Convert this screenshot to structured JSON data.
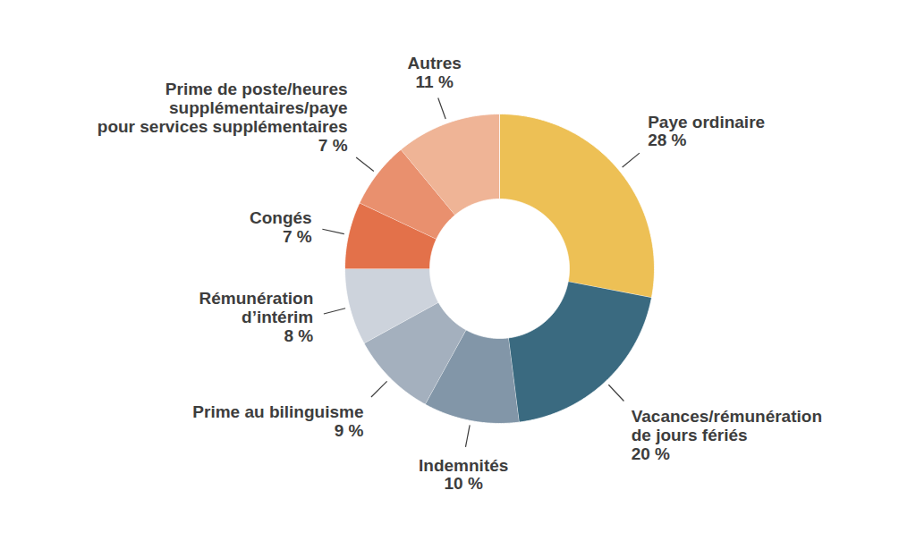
{
  "chart_data": {
    "type": "donut",
    "categories": [
      "Paye ordinaire",
      "Vacances/rémunération\nde jours fériés",
      "Indemnités",
      "Prime au bilinguisme",
      "Rémunération\nd’intérim",
      "Congés",
      "Prime de poste/heures\nsupplémentaires/paye\npour services supplémentaires",
      "Autres"
    ],
    "values": [
      28,
      20,
      10,
      9,
      8,
      7,
      7,
      11
    ],
    "value_labels": [
      "28 %",
      "20 %",
      "10 %",
      "9 %",
      "8 %",
      "7 %",
      "7 %",
      "11 %"
    ],
    "colors": [
      "#EDC055",
      "#3A6A80",
      "#8296A8",
      "#A4B0BE",
      "#CDD3DC",
      "#E3714A",
      "#E9906E",
      "#EFB496"
    ],
    "data_labels": true
  }
}
